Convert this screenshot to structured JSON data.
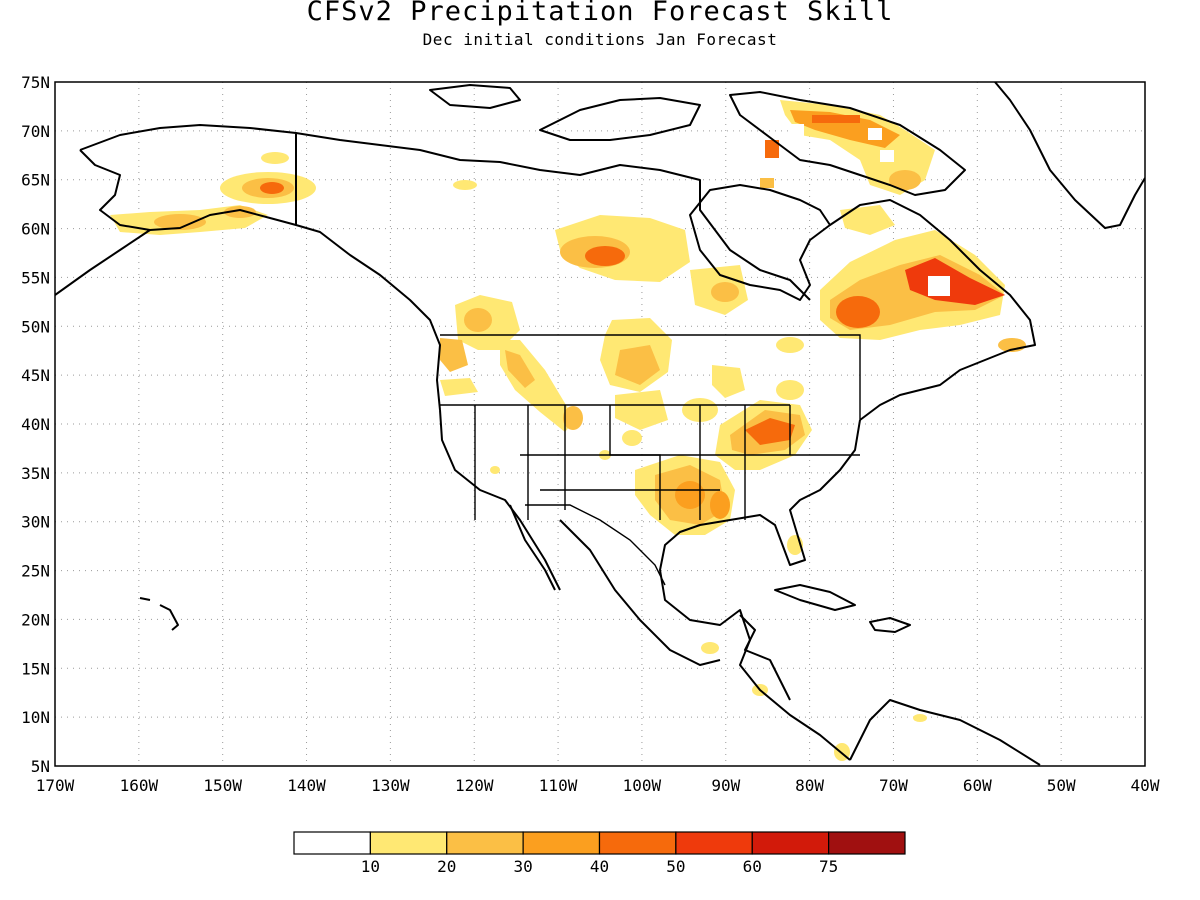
{
  "title": "CFSv2 Precipitation Forecast Skill",
  "subtitle": "Dec initial conditions  Jan Forecast",
  "lon_labels": [
    "170W",
    "160W",
    "150W",
    "140W",
    "130W",
    "120W",
    "110W",
    "100W",
    "90W",
    "80W",
    "70W",
    "60W",
    "50W",
    "40W"
  ],
  "lat_labels": [
    "75N",
    "70N",
    "65N",
    "60N",
    "55N",
    "50N",
    "45N",
    "40N",
    "35N",
    "30N",
    "25N",
    "20N",
    "15N",
    "10N",
    "5N"
  ],
  "colorbar": {
    "labels": [
      "10",
      "20",
      "30",
      "40",
      "50",
      "60",
      "75"
    ],
    "colors": [
      "#ffffff",
      "#ffe873",
      "#fbbf45",
      "#fb9f1f",
      "#f66a0c",
      "#ef3a0c",
      "#d21a0a",
      "#a01010"
    ]
  }
}
